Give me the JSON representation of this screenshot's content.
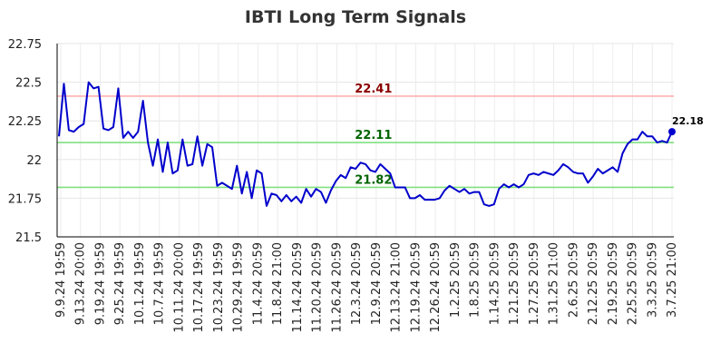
{
  "chart_data": {
    "type": "line",
    "title": "IBTI Long Term Signals",
    "xlabel": "",
    "ylabel": "",
    "ylim": [
      21.5,
      22.75
    ],
    "y_ticks": [
      "21.5",
      "21.75",
      "22",
      "22.25",
      "22.5",
      "22.75"
    ],
    "x_tick_labels": [
      "9.9.24 19:59",
      "9.13.24 20:00",
      "9.19.24 19:59",
      "9.25.24 19:59",
      "10.1.24 19:59",
      "10.7.24 19:59",
      "10.11.24 20:00",
      "10.17.24 19:59",
      "10.23.24 19:59",
      "10.29.24 19:59",
      "11.4.24 20:59",
      "11.8.24 21:00",
      "11.14.24 20:59",
      "11.20.24 20:59",
      "11.26.24 20:59",
      "12.3.24 20:59",
      "12.9.24 20:59",
      "12.13.24 21:00",
      "12.19.24 20:59",
      "12.26.24 20:59",
      "1.2.25 20:59",
      "1.8.25 20:59",
      "1.14.25 20:59",
      "1.21.25 20:59",
      "1.27.25 20:59",
      "1.31.25 21:00",
      "2.6.25 20:59",
      "2.12.25 20:59",
      "2.19.25 20:59",
      "2.25.25 20:59",
      "3.3.25 20:59",
      "3.7.25 21:00"
    ],
    "grid": true,
    "series": [
      {
        "color": "#0000cc",
        "values": [
          22.15,
          22.49,
          22.19,
          22.18,
          22.21,
          22.23,
          22.5,
          22.46,
          22.47,
          22.2,
          22.19,
          22.21,
          22.46,
          22.14,
          22.18,
          22.14,
          22.18,
          22.38,
          22.11,
          21.96,
          22.13,
          21.92,
          22.11,
          21.91,
          21.93,
          22.13,
          21.96,
          21.97,
          22.15,
          21.96,
          22.1,
          22.08,
          21.83,
          21.85,
          21.83,
          21.81,
          21.96,
          21.78,
          21.92,
          21.75,
          21.93,
          21.91,
          21.7,
          21.78,
          21.77,
          21.73,
          21.77,
          21.73,
          21.76,
          21.72,
          21.81,
          21.76,
          21.81,
          21.79,
          21.72,
          21.8,
          21.86,
          21.9,
          21.88,
          21.95,
          21.94,
          21.98,
          21.97,
          21.93,
          21.92,
          21.97,
          21.94,
          21.91,
          21.82,
          21.82,
          21.82,
          21.75,
          21.75,
          21.77,
          21.74,
          21.74,
          21.74,
          21.75,
          21.8,
          21.83,
          21.81,
          21.79,
          21.81,
          21.78,
          21.79,
          21.79,
          21.71,
          21.7,
          21.71,
          21.81,
          21.84,
          21.82,
          21.84,
          21.82,
          21.84,
          21.9,
          21.91,
          21.9,
          21.92,
          21.91,
          21.9,
          21.93,
          21.97,
          21.95,
          21.92,
          21.91,
          21.91,
          21.85,
          21.89,
          21.94,
          21.91,
          21.93,
          21.95,
          21.92,
          22.04,
          22.1,
          22.13,
          22.13,
          22.18,
          22.15,
          22.15,
          22.11,
          22.12,
          22.11,
          22.18
        ]
      }
    ],
    "reference_lines": [
      {
        "value": 22.41,
        "label": "22.41",
        "line_color": "#ffb0b0",
        "label_color": "#8b0000"
      },
      {
        "value": 22.11,
        "label": "22.11",
        "line_color": "#80e080",
        "label_color": "#006400"
      },
      {
        "value": 21.82,
        "label": "21.82",
        "line_color": "#80e080",
        "label_color": "#006400"
      }
    ],
    "last_point": {
      "label": "22.18",
      "color": "#0000cc"
    }
  }
}
